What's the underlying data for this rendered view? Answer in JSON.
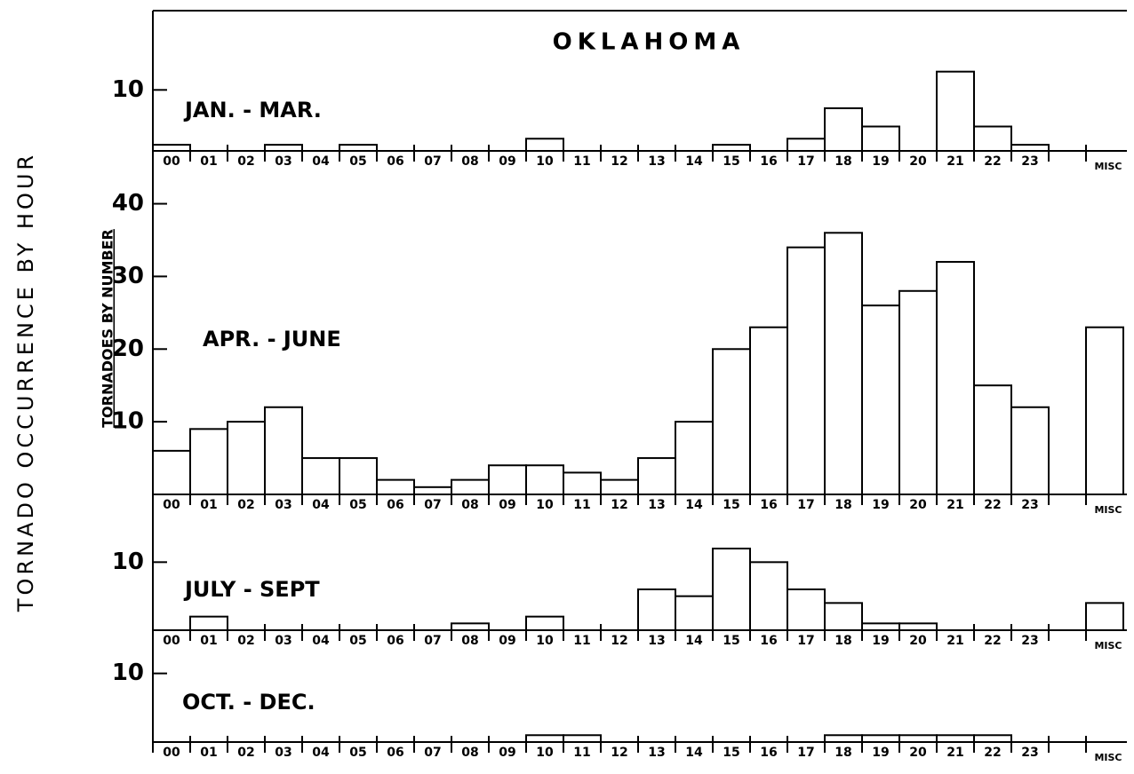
{
  "title": "OKLAHOMA",
  "ylabel": "TORNADO OCCURRENCE BY HOUR",
  "ylabel2": "TORNADOES BY NUMBER",
  "chart_data": [
    {
      "type": "bar",
      "subtitle": "JAN. - MAR.",
      "categories": [
        "00",
        "01",
        "02",
        "03",
        "04",
        "05",
        "06",
        "07",
        "08",
        "09",
        "10",
        "11",
        "12",
        "13",
        "14",
        "15",
        "16",
        "17",
        "18",
        "19",
        "20",
        "21",
        "22",
        "23",
        null,
        "MISC"
      ],
      "values": [
        1,
        0,
        0,
        1,
        0,
        1,
        0,
        0,
        0,
        0,
        2,
        0,
        0,
        0,
        0,
        1,
        0,
        2,
        7,
        4,
        0,
        13,
        4,
        1,
        null,
        0
      ],
      "ylim": [
        0,
        23
      ],
      "yticks": [
        10
      ]
    },
    {
      "type": "bar",
      "subtitle": "APR. - JUNE",
      "categories": [
        "00",
        "01",
        "02",
        "03",
        "04",
        "05",
        "06",
        "07",
        "08",
        "09",
        "10",
        "11",
        "12",
        "13",
        "14",
        "15",
        "16",
        "17",
        "18",
        "19",
        "20",
        "21",
        "22",
        "23",
        null,
        "MISC"
      ],
      "values": [
        6,
        9,
        10,
        12,
        5,
        5,
        2,
        1,
        2,
        4,
        4,
        3,
        2,
        5,
        10,
        20,
        23,
        34,
        36,
        26,
        28,
        32,
        15,
        12,
        null,
        23
      ],
      "ylim": [
        0,
        43
      ],
      "yticks": [
        10,
        20,
        30,
        40
      ]
    },
    {
      "type": "bar",
      "subtitle": "JULY - SEPT",
      "categories": [
        "00",
        "01",
        "02",
        "03",
        "04",
        "05",
        "06",
        "07",
        "08",
        "09",
        "10",
        "11",
        "12",
        "13",
        "14",
        "15",
        "16",
        "17",
        "18",
        "19",
        "20",
        "21",
        "22",
        "23",
        null,
        "MISC"
      ],
      "values": [
        0,
        2,
        0,
        0,
        0,
        0,
        0,
        0,
        1,
        0,
        2,
        0,
        0,
        6,
        5,
        12,
        10,
        6,
        4,
        1,
        1,
        0,
        0,
        0,
        null,
        4
      ],
      "ylim": [
        0,
        15
      ],
      "yticks": [
        10
      ]
    },
    {
      "type": "bar",
      "subtitle": "OCT. - DEC.",
      "categories": [
        "00",
        "01",
        "02",
        "03",
        "04",
        "05",
        "06",
        "07",
        "08",
        "09",
        "10",
        "11",
        "12",
        "13",
        "14",
        "15",
        "16",
        "17",
        "18",
        "19",
        "20",
        "21",
        "22",
        "23",
        null,
        "MISC"
      ],
      "values": [
        0,
        0,
        0,
        0,
        0,
        0,
        0,
        0,
        0,
        0,
        1,
        1,
        0,
        0,
        0,
        0,
        0,
        0,
        1,
        1,
        1,
        1,
        1,
        0,
        null,
        0
      ],
      "ylim": [
        0,
        15
      ],
      "yticks": [
        10
      ]
    }
  ]
}
